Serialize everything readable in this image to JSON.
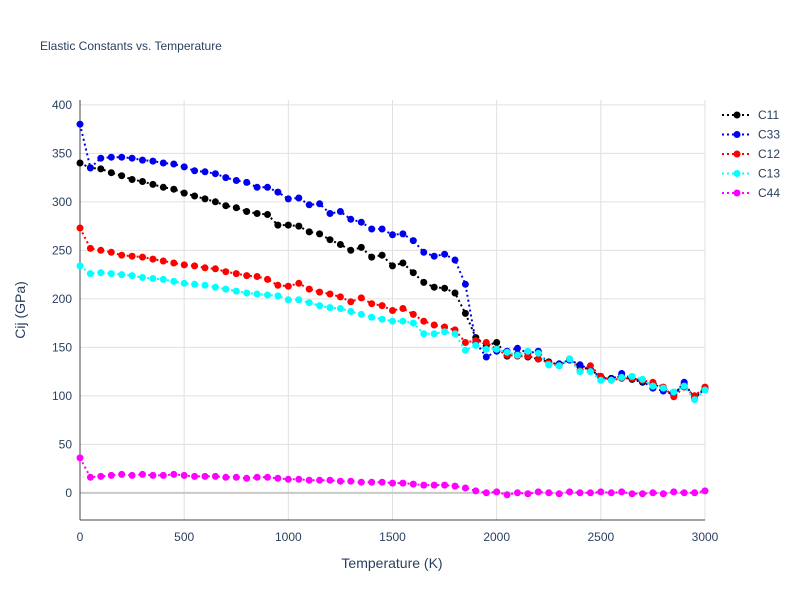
{
  "chart_data": {
    "type": "line",
    "title": "Elastic Constants vs. Temperature",
    "xlabel": "Temperature (K)",
    "ylabel": "Cij (GPa)",
    "xlim": [
      0,
      3000
    ],
    "ylim": [
      -28,
      405
    ],
    "xticks": [
      0,
      500,
      1000,
      1500,
      2000,
      2500,
      3000
    ],
    "yticks": [
      0,
      50,
      100,
      150,
      200,
      250,
      300,
      350,
      400
    ],
    "grid": true,
    "legend_position": "top-right",
    "line_style": "dotted",
    "x": [
      0,
      50,
      100,
      150,
      200,
      250,
      300,
      350,
      400,
      450,
      500,
      550,
      600,
      650,
      700,
      750,
      800,
      850,
      900,
      950,
      1000,
      1050,
      1100,
      1150,
      1200,
      1250,
      1300,
      1350,
      1400,
      1450,
      1500,
      1550,
      1600,
      1650,
      1700,
      1750,
      1800,
      1850,
      1900,
      1950,
      2000,
      2050,
      2100,
      2150,
      2200,
      2250,
      2300,
      2350,
      2400,
      2450,
      2500,
      2550,
      2600,
      2650,
      2700,
      2750,
      2800,
      2850,
      2900,
      2950,
      3000
    ],
    "series": [
      {
        "name": "C11",
        "color": "#000000",
        "values": [
          340,
          335,
          334,
          330,
          327,
          323,
          321,
          318,
          315,
          313,
          309,
          306,
          303,
          300,
          296,
          294,
          290,
          288,
          287,
          276,
          276,
          275,
          269,
          267,
          261,
          256,
          250,
          253,
          243,
          245,
          234,
          237,
          227,
          217,
          212,
          211,
          206,
          185,
          160,
          152,
          155,
          141,
          143,
          140,
          138,
          135,
          132,
          137,
          130,
          127,
          120,
          118,
          120,
          117,
          114,
          112,
          108,
          102,
          112,
          98,
          108
        ]
      },
      {
        "name": "C33",
        "color": "#0000ee",
        "values": [
          380,
          335,
          345,
          346,
          346,
          345,
          343,
          342,
          340,
          339,
          336,
          332,
          331,
          329,
          325,
          322,
          320,
          315,
          315,
          310,
          303,
          304,
          297,
          298,
          288,
          290,
          282,
          279,
          272,
          272,
          266,
          267,
          260,
          248,
          244,
          246,
          240,
          215,
          155,
          140,
          146,
          146,
          149,
          144,
          146,
          132,
          133,
          137,
          132,
          127,
          119,
          117,
          123,
          118,
          115,
          108,
          105,
          101,
          114,
          97,
          108
        ]
      },
      {
        "name": "C12",
        "color": "#ff0000",
        "values": [
          273,
          252,
          250,
          248,
          245,
          244,
          243,
          241,
          239,
          237,
          235,
          234,
          232,
          231,
          228,
          226,
          224,
          223,
          220,
          214,
          213,
          216,
          210,
          207,
          205,
          202,
          197,
          201,
          195,
          193,
          188,
          190,
          184,
          177,
          173,
          171,
          168,
          155,
          157,
          155,
          148,
          142,
          141,
          141,
          138,
          134,
          131,
          138,
          126,
          131,
          120,
          116,
          118,
          118,
          116,
          114,
          109,
          99,
          109,
          100,
          109
        ]
      },
      {
        "name": "C13",
        "color": "#00ffff",
        "values": [
          234,
          226,
          227,
          226,
          225,
          224,
          222,
          221,
          220,
          218,
          216,
          215,
          214,
          212,
          210,
          208,
          206,
          205,
          204,
          203,
          199,
          199,
          196,
          193,
          191,
          190,
          187,
          184,
          181,
          179,
          177,
          177,
          175,
          164,
          164,
          166,
          164,
          147,
          152,
          148,
          148,
          145,
          142,
          146,
          144,
          132,
          131,
          138,
          125,
          125,
          116,
          116,
          119,
          120,
          117,
          110,
          108,
          104,
          110,
          96,
          106
        ]
      },
      {
        "name": "C44",
        "color": "#ff00ff",
        "values": [
          36,
          16,
          17,
          18,
          19,
          18,
          19,
          18,
          18,
          19,
          18,
          17,
          17,
          17,
          16,
          16,
          15,
          16,
          16,
          15,
          14,
          14,
          13,
          13,
          13,
          12,
          12,
          11,
          11,
          11,
          10,
          10,
          9,
          8,
          8,
          8,
          7,
          5,
          2,
          0,
          1,
          -2,
          0,
          -1,
          1,
          0,
          -1,
          1,
          0,
          0,
          1,
          0,
          1,
          -1,
          -1,
          0,
          -1,
          1,
          0,
          0,
          2
        ]
      }
    ]
  }
}
